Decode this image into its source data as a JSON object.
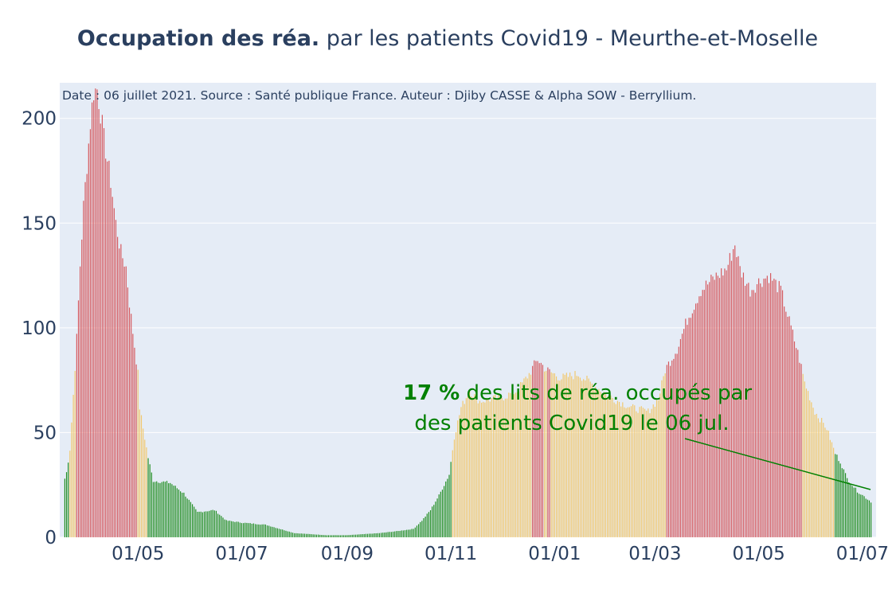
{
  "title": {
    "bold": "Occupation des réa.",
    "rest": " par les patients Covid19 - Meurthe-et-Moselle"
  },
  "source_note": "Date : 06 juillet 2021. Source : Santé publique France. Auteur : Djiby CASSE & Alpha SOW - Berryllium.",
  "annotation": {
    "line1_bold": "17  %",
    "line1_rest": " des lits de réa. occupés par",
    "line2": "des patients Covid19 le 06 jul."
  },
  "colors": {
    "plot_bg": "#e5ecf6",
    "grid": "#ffffff",
    "text": "#2a3f5f",
    "green": "#1e8c1e",
    "orange": "#f2c76b",
    "red": "#d5565b",
    "annotation": "#008000"
  },
  "chart_data": {
    "type": "bar",
    "x_start": "2020-03-19",
    "x_end": "2021-07-06",
    "xlim": [
      "2020-03-16",
      "2021-07-09"
    ],
    "ylim": [
      0,
      217
    ],
    "y_ticks": [
      0,
      50,
      100,
      150,
      200
    ],
    "x_ticks": [
      {
        "date": "2020-05-01",
        "label": "01/05"
      },
      {
        "date": "2020-07-01",
        "label": "01/07"
      },
      {
        "date": "2020-09-01",
        "label": "01/09"
      },
      {
        "date": "2020-11-01",
        "label": "01/11"
      },
      {
        "date": "2021-01-01",
        "label": "01/01"
      },
      {
        "date": "2021-03-01",
        "label": "01/03"
      },
      {
        "date": "2021-05-01",
        "label": "01/05"
      },
      {
        "date": "2021-07-01",
        "label": "01/07"
      }
    ],
    "curve": [
      [
        "2020-03-19",
        28
      ],
      [
        "2020-03-20",
        31
      ],
      [
        "2020-03-22",
        42
      ],
      [
        "2020-03-24",
        68
      ],
      [
        "2020-03-26",
        95
      ],
      [
        "2020-03-28",
        130
      ],
      [
        "2020-03-30",
        158
      ],
      [
        "2020-04-01",
        178
      ],
      [
        "2020-04-03",
        198
      ],
      [
        "2020-04-05",
        213
      ],
      [
        "2020-04-07",
        214
      ],
      [
        "2020-04-09",
        203
      ],
      [
        "2020-04-11",
        190
      ],
      [
        "2020-04-13",
        180
      ],
      [
        "2020-04-15",
        170
      ],
      [
        "2020-04-18",
        150
      ],
      [
        "2020-04-21",
        136
      ],
      [
        "2020-04-24",
        129
      ],
      [
        "2020-04-26",
        112
      ],
      [
        "2020-04-28",
        98
      ],
      [
        "2020-05-01",
        78
      ],
      [
        "2020-05-02",
        62
      ],
      [
        "2020-05-04",
        52
      ],
      [
        "2020-05-07",
        38
      ],
      [
        "2020-05-10",
        27
      ],
      [
        "2020-05-20",
        26
      ],
      [
        "2020-05-28",
        21
      ],
      [
        "2020-06-05",
        12
      ],
      [
        "2020-06-15",
        13
      ],
      [
        "2020-06-22",
        8
      ],
      [
        "2020-07-01",
        7
      ],
      [
        "2020-07-15",
        6
      ],
      [
        "2020-08-01",
        2
      ],
      [
        "2020-08-20",
        1
      ],
      [
        "2020-09-01",
        1
      ],
      [
        "2020-09-20",
        2
      ],
      [
        "2020-10-01",
        3
      ],
      [
        "2020-10-10",
        4
      ],
      [
        "2020-10-15",
        8
      ],
      [
        "2020-10-20",
        13
      ],
      [
        "2020-10-25",
        20
      ],
      [
        "2020-10-31",
        30
      ],
      [
        "2020-11-03",
        48
      ],
      [
        "2020-11-07",
        62
      ],
      [
        "2020-11-12",
        70
      ],
      [
        "2020-11-18",
        65
      ],
      [
        "2020-11-25",
        66
      ],
      [
        "2020-12-02",
        67
      ],
      [
        "2020-12-10",
        70
      ],
      [
        "2020-12-17",
        78
      ],
      [
        "2020-12-22",
        85
      ],
      [
        "2020-12-27",
        80
      ],
      [
        "2021-01-05",
        76
      ],
      [
        "2021-01-15",
        78
      ],
      [
        "2021-01-25",
        72
      ],
      [
        "2021-02-05",
        66
      ],
      [
        "2021-02-15",
        62
      ],
      [
        "2021-02-25",
        60
      ],
      [
        "2021-03-03",
        66
      ],
      [
        "2021-03-07",
        80
      ],
      [
        "2021-03-14",
        90
      ],
      [
        "2021-03-20",
        104
      ],
      [
        "2021-03-28",
        118
      ],
      [
        "2021-04-05",
        124
      ],
      [
        "2021-04-12",
        128
      ],
      [
        "2021-04-17",
        140
      ],
      [
        "2021-04-20",
        128
      ],
      [
        "2021-04-26",
        118
      ],
      [
        "2021-05-01",
        122
      ],
      [
        "2021-05-07",
        125
      ],
      [
        "2021-05-14",
        118
      ],
      [
        "2021-05-20",
        100
      ],
      [
        "2021-05-25",
        85
      ],
      [
        "2021-05-28",
        74
      ],
      [
        "2021-06-03",
        60
      ],
      [
        "2021-06-10",
        52
      ],
      [
        "2021-06-15",
        40
      ],
      [
        "2021-06-18",
        36
      ],
      [
        "2021-06-22",
        28
      ],
      [
        "2021-06-28",
        22
      ],
      [
        "2021-07-06",
        17
      ]
    ],
    "thresholds": {
      "orange": 40,
      "red": 80
    }
  }
}
